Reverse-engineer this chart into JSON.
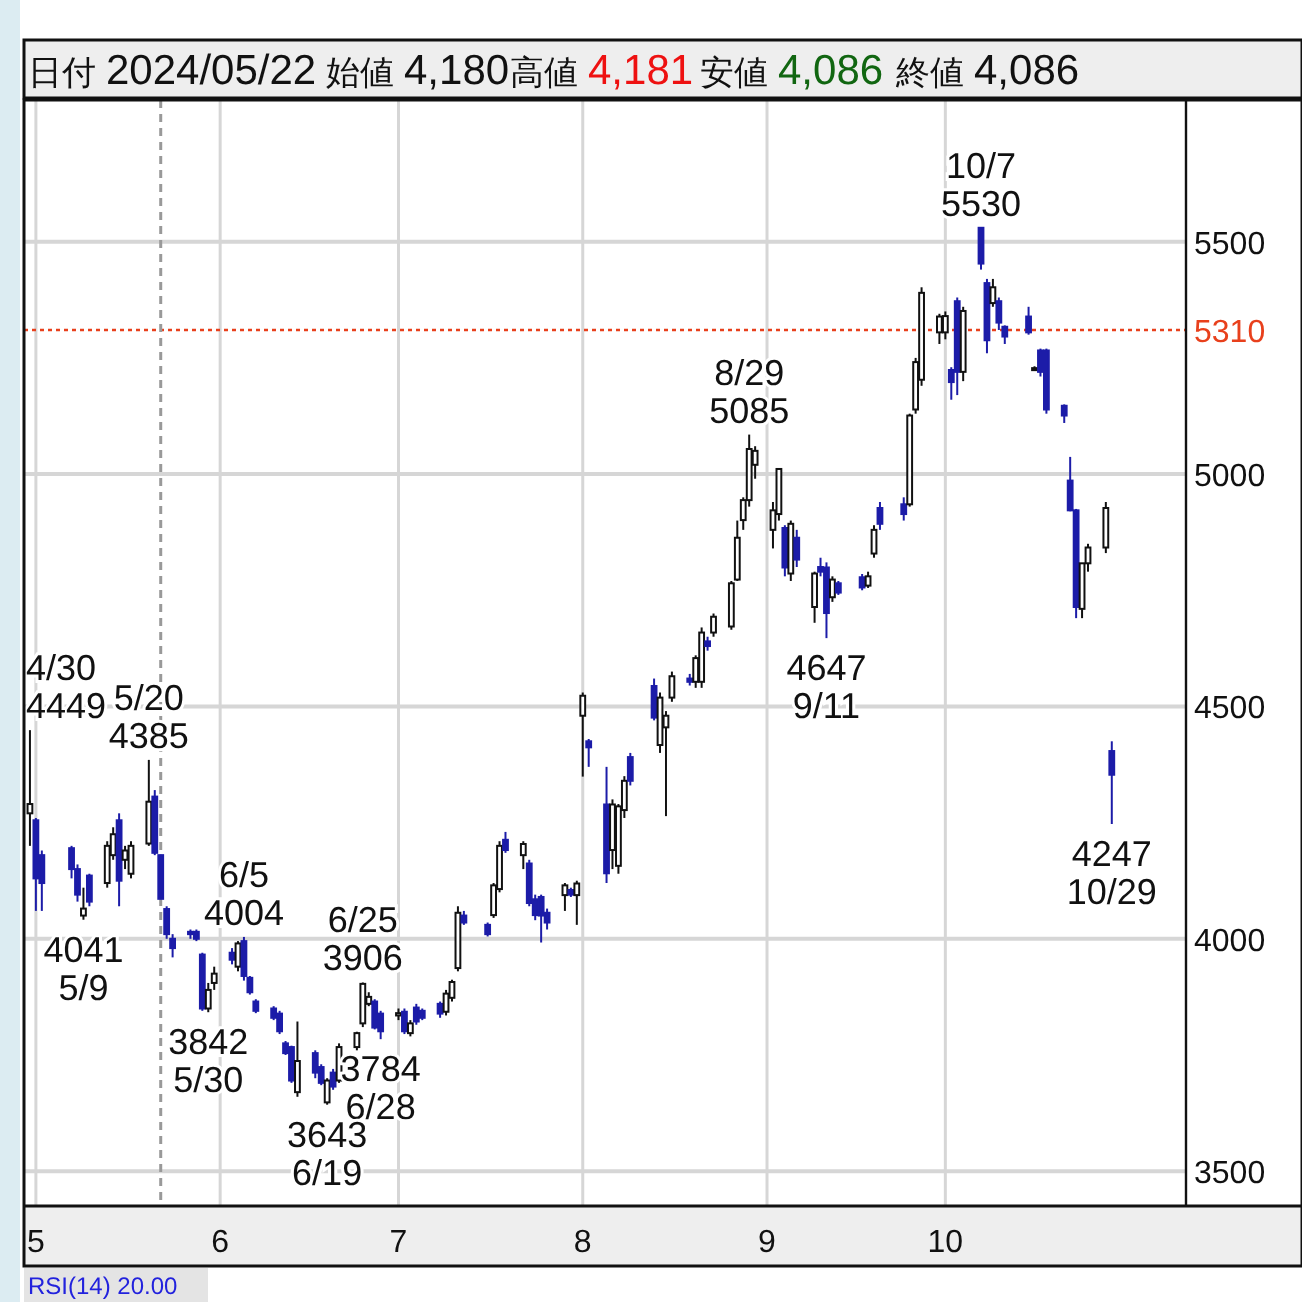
{
  "chart_data": {
    "type": "candlestick",
    "grid": true,
    "colors": [
      "#ffffff",
      "#1c1ca8",
      "#1c1ca8",
      "#1c1ca8",
      "#1c1ca8",
      "#ffffff",
      "#1c1ca8",
      "#ffffff",
      "#ffffff",
      "#1c1ca8",
      "#ffffff",
      "#ffffff",
      "#ffffff",
      "#1c1ca8",
      "#1c1ca8",
      "#1c1ca8",
      "#1c1ca8",
      "#1c1ca8",
      "#1c1ca8",
      "#1c1ca8",
      "#ffffff",
      "#ffffff",
      "#1c1ca8",
      "#ffffff",
      "#1c1ca8",
      "#1c1ca8",
      "#1c1ca8",
      "#1c1ca8",
      "#1c1ca8",
      "#1c1ca8",
      "#1c1ca8",
      "#ffffff",
      "#1c1ca8",
      "#1c1ca8",
      "#ffffff",
      "#1c1ca8",
      "#ffffff",
      "#ffffff",
      "#ffffff",
      "#ffffff",
      "#1c1ca8",
      "#1c1ca8",
      "#ffffff",
      "#1c1ca8",
      "#ffffff",
      "#1c1ca8",
      "#1c1ca8",
      "#1c1ca8",
      "#ffffff",
      "#ffffff",
      "#ffffff",
      "#1c1ca8",
      "#1c1ca8",
      "#ffffff",
      "#ffffff",
      "#1c1ca8",
      "#ffffff",
      "#1c1ca8",
      "#1c1ca8",
      "#1c1ca8",
      "#1c1ca8",
      "#ffffff",
      "#1c1ca8",
      "#ffffff",
      "#ffffff",
      "#1c1ca8",
      "#1c1ca8",
      "#ffffff",
      "#ffffff",
      "#ffffff",
      "#1c1ca8",
      "#1c1ca8",
      "#ffffff",
      "#ffffff",
      "#ffffff",
      "#1c1ca8",
      "#ffffff",
      "#ffffff",
      "#1c1ca8",
      "#ffffff",
      "#ffffff",
      "#ffffff",
      "#ffffff",
      "#ffffff",
      "#ffffff",
      "#ffffff",
      "#ffffff",
      "#1c1ca8",
      "#ffffff",
      "#1c1ca8",
      "#ffffff",
      "#1c1ca8",
      "#1c1ca8",
      "#ffffff",
      "#1c1ca8",
      "#1c1ca8",
      "#ffffff",
      "#ffffff",
      "#1c1ca8",
      "#1c1ca8",
      "#ffffff",
      "#ffffff",
      "#ffffff",
      "#ffffff",
      "#ffffff",
      "#1c1ca8",
      "#1c1ca8",
      "#ffffff",
      "#1c1ca8",
      "#1c1ca8",
      "#ffffff",
      "#1c1ca8",
      "#1c1ca8",
      "#1c1ca8",
      "#ffffff",
      "#1c1ca8",
      "#1c1ca8",
      "#1c1ca8",
      "#1c1ca8",
      "#1c1ca8",
      "#ffffff",
      "#ffffff",
      "#ffffff",
      "#1c1ca8"
    ],
    "ylim": [
      3425,
      5805
    ],
    "xlim": [
      "2024-04-29",
      "2024-11-30"
    ],
    "yticks": [
      3500,
      4000,
      4500,
      5000,
      5500
    ],
    "xticks": [
      {
        "value": "2024-05-01",
        "label": "5"
      },
      {
        "value": "2024-06-01",
        "label": "6"
      },
      {
        "value": "2024-07-01",
        "label": "7"
      },
      {
        "value": "2024-08-01",
        "label": "8"
      },
      {
        "value": "2024-09-01",
        "label": "9"
      },
      {
        "value": "2024-10-01",
        "label": "10"
      }
    ],
    "ref_lines": [
      {
        "axis": "y",
        "value": 5310,
        "label": "5310",
        "color": "#e8401c",
        "line_style": "dotted"
      },
      {
        "axis": "x",
        "value": "2024-05-22",
        "color": "#999999",
        "line_style": "dashed"
      }
    ],
    "annotations": [
      "日付 2024/05/22",
      "始値 4,180",
      "高値 4,181",
      "安値 4,086",
      "終値 4,086",
      "RSI(14)  20.00",
      {
        "text": "4/30\n4449",
        "x": "2024-04-30",
        "y": 4449
      },
      {
        "text": "5/20\n4385",
        "x": "2024-05-20",
        "y": 4385
      },
      {
        "text": "4041\n5/9",
        "x": "2024-05-09",
        "y": 4041
      },
      {
        "text": "6/5\n4004",
        "x": "2024-06-05",
        "y": 4004
      },
      {
        "text": "3842\n5/30",
        "x": "2024-05-30",
        "y": 3842
      },
      {
        "text": "6/25\n3906",
        "x": "2024-06-25",
        "y": 3906
      },
      {
        "text": "3784\n6/28",
        "x": "2024-06-28",
        "y": 3784
      },
      {
        "text": "3643\n6/19",
        "x": "2024-06-19",
        "y": 3643
      },
      {
        "text": "8/29\n5085",
        "x": "2024-08-29",
        "y": 5085
      },
      {
        "text": "4647\n9/11",
        "x": "2024-09-11",
        "y": 4647
      },
      {
        "text": "10/7\n5530",
        "x": "2024-10-07",
        "y": 5530
      },
      {
        "text": "4247\n10/29",
        "x": "2024-10-29",
        "y": 4247
      }
    ],
    "x": [
      "2024-04-30",
      "2024-05-01",
      "2024-05-02",
      "2024-05-07",
      "2024-05-08",
      "2024-05-09",
      "2024-05-10",
      "2024-05-13",
      "2024-05-14",
      "2024-05-15",
      "2024-05-16",
      "2024-05-17",
      "2024-05-20",
      "2024-05-21",
      "2024-05-22",
      "2024-05-23",
      "2024-05-24",
      "2024-05-27",
      "2024-05-28",
      "2024-05-29",
      "2024-05-30",
      "2024-05-31",
      "2024-06-03",
      "2024-06-04",
      "2024-06-05",
      "2024-06-06",
      "2024-06-07",
      "2024-06-10",
      "2024-06-11",
      "2024-06-12",
      "2024-06-13",
      "2024-06-14",
      "2024-06-17",
      "2024-06-18",
      "2024-06-19",
      "2024-06-20",
      "2024-06-21",
      "2024-06-24",
      "2024-06-25",
      "2024-06-26",
      "2024-06-27",
      "2024-06-28",
      "2024-07-01",
      "2024-07-02",
      "2024-07-03",
      "2024-07-04",
      "2024-07-05",
      "2024-07-08",
      "2024-07-09",
      "2024-07-10",
      "2024-07-11",
      "2024-07-12",
      "2024-07-16",
      "2024-07-17",
      "2024-07-18",
      "2024-07-19",
      "2024-07-22",
      "2024-07-23",
      "2024-07-24",
      "2024-07-25",
      "2024-07-26",
      "2024-07-29",
      "2024-07-30",
      "2024-07-31",
      "2024-08-01",
      "2024-08-02",
      "2024-08-05",
      "2024-08-06",
      "2024-08-07",
      "2024-08-08",
      "2024-08-09",
      "2024-08-13",
      "2024-08-14",
      "2024-08-15",
      "2024-08-16",
      "2024-08-19",
      "2024-08-20",
      "2024-08-21",
      "2024-08-22",
      "2024-08-23",
      "2024-08-26",
      "2024-08-27",
      "2024-08-28",
      "2024-08-29",
      "2024-08-30",
      "2024-09-02",
      "2024-09-03",
      "2024-09-04",
      "2024-09-05",
      "2024-09-06",
      "2024-09-09",
      "2024-09-10",
      "2024-09-11",
      "2024-09-12",
      "2024-09-13",
      "2024-09-17",
      "2024-09-18",
      "2024-09-19",
      "2024-09-20",
      "2024-09-24",
      "2024-09-25",
      "2024-09-26",
      "2024-09-27",
      "2024-09-30",
      "2024-10-01",
      "2024-10-02",
      "2024-10-03",
      "2024-10-04",
      "2024-10-07",
      "2024-10-08",
      "2024-10-09",
      "2024-10-10",
      "2024-10-11",
      "2024-10-15",
      "2024-10-16",
      "2024-10-17",
      "2024-10-18",
      "2024-10-21",
      "2024-10-22",
      "2024-10-23",
      "2024-10-24",
      "2024-10-25",
      "2024-10-28",
      "2024-10-29"
    ],
    "ohlc": [
      [
        4270,
        4449,
        4200,
        4290
      ],
      [
        4255,
        4260,
        4060,
        4130
      ],
      [
        4180,
        4190,
        4060,
        4120
      ],
      [
        4195,
        4200,
        4130,
        4150
      ],
      [
        4150,
        4160,
        4080,
        4095
      ],
      [
        4050,
        4110,
        4041,
        4065
      ],
      [
        4136,
        4140,
        4070,
        4080
      ],
      [
        4120,
        4210,
        4110,
        4200
      ],
      [
        4180,
        4240,
        4170,
        4225
      ],
      [
        4255,
        4270,
        4070,
        4125
      ],
      [
        4170,
        4200,
        4150,
        4190
      ],
      [
        4140,
        4210,
        4130,
        4200
      ],
      [
        4205,
        4385,
        4200,
        4295
      ],
      [
        4306,
        4320,
        4180,
        4185
      ],
      [
        4180,
        4181,
        4086,
        4086
      ],
      [
        4064,
        4070,
        4000,
        4010
      ],
      [
        4000,
        4010,
        3960,
        3980
      ],
      [
        4015,
        4020,
        4000,
        4010
      ],
      [
        4015,
        4020,
        3995,
        4000
      ],
      [
        3966,
        3970,
        3845,
        3850
      ],
      [
        3850,
        3905,
        3842,
        3890
      ],
      [
        3905,
        3940,
        3890,
        3925
      ],
      [
        3970,
        3980,
        3945,
        3955
      ],
      [
        3940,
        3995,
        3930,
        3990
      ],
      [
        3995,
        4004,
        3910,
        3920
      ],
      [
        3916,
        3920,
        3880,
        3885
      ],
      [
        3865,
        3870,
        3840,
        3845
      ],
      [
        3850,
        3855,
        3825,
        3830
      ],
      [
        3839,
        3845,
        3795,
        3801
      ],
      [
        3775,
        3780,
        3750,
        3754
      ],
      [
        3767,
        3770,
        3690,
        3695
      ],
      [
        3670,
        3822,
        3660,
        3737
      ],
      [
        3754,
        3760,
        3700,
        3712
      ],
      [
        3724,
        3730,
        3685,
        3690
      ],
      [
        3648,
        3700,
        3643,
        3695
      ],
      [
        3712,
        3720,
        3675,
        3682
      ],
      [
        3695,
        3775,
        3690,
        3767
      ],
      [
        3767,
        3800,
        3760,
        3797
      ],
      [
        3818,
        3906,
        3810,
        3903
      ],
      [
        3860,
        3885,
        3855,
        3875
      ],
      [
        3865,
        3870,
        3805,
        3809
      ],
      [
        3839,
        3845,
        3784,
        3801
      ],
      [
        3835,
        3850,
        3825,
        3840
      ],
      [
        3843,
        3850,
        3795,
        3801
      ],
      [
        3797,
        3825,
        3790,
        3818
      ],
      [
        3852,
        3860,
        3815,
        3822
      ],
      [
        3845,
        3850,
        3825,
        3830
      ],
      [
        3860,
        3865,
        3830,
        3839
      ],
      [
        3843,
        3890,
        3835,
        3882
      ],
      [
        3873,
        3912,
        3865,
        3907
      ],
      [
        3937,
        4070,
        3930,
        4056
      ],
      [
        4050,
        4060,
        4030,
        4035
      ],
      [
        4030,
        4035,
        4005,
        4010
      ],
      [
        4051,
        4120,
        4045,
        4115
      ],
      [
        4107,
        4210,
        4100,
        4200
      ],
      [
        4213,
        4230,
        4185,
        4191
      ],
      [
        4180,
        4210,
        4150,
        4204
      ],
      [
        4162,
        4170,
        4070,
        4077
      ],
      [
        4085,
        4095,
        4040,
        4051
      ],
      [
        4090,
        4095,
        3992,
        4050
      ],
      [
        4056,
        4065,
        4020,
        4035
      ],
      [
        4094,
        4120,
        4060,
        4115
      ],
      [
        4105,
        4110,
        4090,
        4095
      ],
      [
        4094,
        4125,
        4030,
        4119
      ],
      [
        4480,
        4530,
        4349,
        4523
      ],
      [
        4425,
        4430,
        4370,
        4412
      ],
      [
        4289,
        4370,
        4120,
        4141
      ],
      [
        4191,
        4300,
        4150,
        4289
      ],
      [
        4157,
        4290,
        4140,
        4285
      ],
      [
        4277,
        4350,
        4260,
        4340
      ],
      [
        4391,
        4400,
        4330,
        4340
      ],
      [
        4544,
        4560,
        4470,
        4476
      ],
      [
        4417,
        4530,
        4400,
        4519
      ],
      [
        4455,
        4490,
        4264,
        4480
      ],
      [
        4519,
        4575,
        4510,
        4565
      ],
      [
        4560,
        4570,
        4545,
        4553
      ],
      [
        4553,
        4610,
        4540,
        4604
      ],
      [
        4553,
        4670,
        4540,
        4659
      ],
      [
        4640,
        4650,
        4620,
        4630
      ],
      [
        4659,
        4700,
        4650,
        4693
      ],
      [
        4672,
        4770,
        4665,
        4765
      ],
      [
        4773,
        4900,
        4770,
        4863
      ],
      [
        4901,
        4950,
        4880,
        4944
      ],
      [
        4944,
        5085,
        4930,
        5054
      ],
      [
        5020,
        5060,
        4990,
        5050
      ],
      [
        4880,
        4940,
        4840,
        4922
      ],
      [
        4914,
        5011,
        4900,
        5011
      ],
      [
        4884,
        4890,
        4780,
        4799
      ],
      [
        4786,
        4900,
        4770,
        4893
      ],
      [
        4863,
        4880,
        4800,
        4816
      ],
      [
        4714,
        4790,
        4680,
        4786
      ],
      [
        4800,
        4820,
        4780,
        4790
      ],
      [
        4799,
        4810,
        4647,
        4701
      ],
      [
        4735,
        4780,
        4725,
        4773
      ],
      [
        4765,
        4770,
        4740,
        4745
      ],
      [
        4778,
        4785,
        4750,
        4756
      ],
      [
        4760,
        4790,
        4755,
        4780
      ],
      [
        4829,
        4890,
        4820,
        4880
      ],
      [
        4927,
        4940,
        4880,
        4893
      ],
      [
        4935,
        4950,
        4900,
        4914
      ],
      [
        4935,
        5130,
        4930,
        5126
      ],
      [
        5139,
        5250,
        5130,
        5241
      ],
      [
        5203,
        5402,
        5190,
        5390
      ],
      [
        5305,
        5345,
        5280,
        5339
      ],
      [
        5305,
        5350,
        5290,
        5340
      ],
      [
        5224,
        5230,
        5160,
        5198
      ],
      [
        5372,
        5380,
        5170,
        5220
      ],
      [
        5220,
        5360,
        5200,
        5351
      ],
      [
        5530,
        5530,
        5440,
        5453
      ],
      [
        5411,
        5420,
        5260,
        5288
      ],
      [
        5368,
        5420,
        5360,
        5402
      ],
      [
        5372,
        5380,
        5310,
        5326
      ],
      [
        5317,
        5320,
        5280,
        5296
      ],
      [
        5339,
        5360,
        5300,
        5305
      ],
      [
        5225,
        5232,
        5222,
        5228
      ],
      [
        5266,
        5270,
        5210,
        5220
      ],
      [
        5266,
        5270,
        5130,
        5139
      ],
      [
        5147,
        5150,
        5110,
        5126
      ],
      [
        4986,
        5037,
        4920,
        4922
      ],
      [
        4922,
        4925,
        4690,
        4714
      ],
      [
        4710,
        4808,
        4690,
        4808
      ],
      [
        4808,
        4850,
        4790,
        4842
      ],
      [
        4842,
        4940,
        4830,
        4927
      ],
      [
        4404,
        4425,
        4247,
        4353
      ]
    ]
  }
}
